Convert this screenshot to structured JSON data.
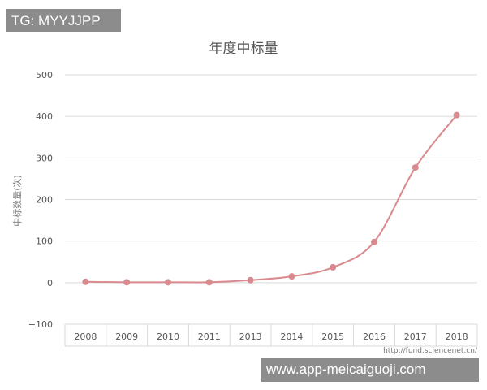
{
  "watermarks": {
    "top": "TG: MYYJJPP",
    "bottom": "www.app-meicaiguoji.com"
  },
  "colors": {
    "line": "#d98a8e",
    "marker": "#d98a8e",
    "grid": "#d9d9d9",
    "text": "#555555",
    "watermark_bg": "#8c8c8c"
  },
  "chart_data": {
    "type": "line",
    "title": "年度中标量",
    "xlabel": "",
    "ylabel": "中标数量(次)",
    "source": "http://fund.sciencenet.cn/",
    "categories": [
      "2008",
      "2009",
      "2010",
      "2011",
      "2013",
      "2014",
      "2015",
      "2016",
      "2017",
      "2018"
    ],
    "series": [
      {
        "values": [
          2,
          1,
          1,
          1,
          6,
          15,
          37,
          98,
          277,
          403
        ]
      }
    ],
    "ylim": [
      -100,
      500
    ],
    "yticks": [
      500,
      400,
      300,
      200,
      100,
      0,
      -100
    ],
    "grid": true,
    "smooth": true,
    "legend": "none"
  }
}
